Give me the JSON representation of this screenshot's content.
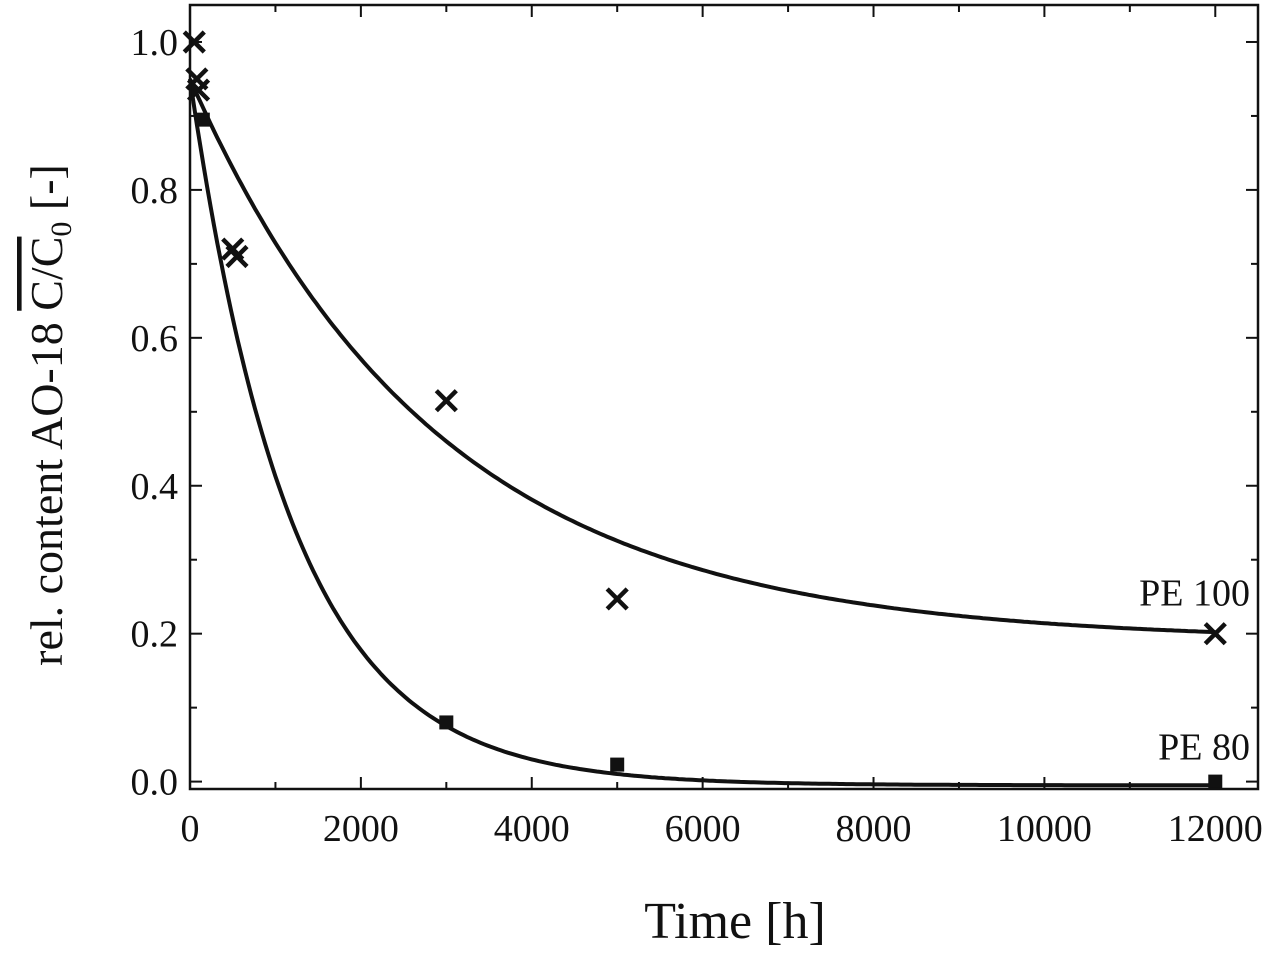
{
  "chart_data": {
    "type": "scatter",
    "xlabel": "Time [h]",
    "ylabel": {
      "prefix": "rel. content AO-18 ",
      "fraction": "C/C",
      "subscript": "0",
      "suffix": " [-]"
    },
    "xlim": [
      0,
      12500
    ],
    "ylim": [
      -0.01,
      1.05
    ],
    "x_ticks": [
      0,
      2000,
      4000,
      6000,
      8000,
      10000,
      12000
    ],
    "y_ticks": [
      0.0,
      0.2,
      0.4,
      0.6,
      0.8,
      1.0
    ],
    "x_tick_labels": [
      "0",
      "2000",
      "4000",
      "6000",
      "8000",
      "10000",
      "12000"
    ],
    "y_tick_labels": [
      "0.0",
      "0.2",
      "0.4",
      "0.6",
      "0.8",
      "1.0"
    ],
    "grid": false,
    "series": [
      {
        "name": "PE 100",
        "marker": "x",
        "points": [
          {
            "x": 50,
            "y": 1.0
          },
          {
            "x": 80,
            "y": 0.95
          },
          {
            "x": 100,
            "y": 0.935
          },
          {
            "x": 500,
            "y": 0.72
          },
          {
            "x": 550,
            "y": 0.71
          },
          {
            "x": 3000,
            "y": 0.515
          },
          {
            "x": 5000,
            "y": 0.247
          },
          {
            "x": 12000,
            "y": 0.2
          }
        ],
        "fit": {
          "model": "exponential",
          "y_inf": 0.19,
          "amplitude": 0.76,
          "tau_h": 2900
        }
      },
      {
        "name": "PE 80",
        "marker": "square",
        "points": [
          {
            "x": 150,
            "y": 0.895
          },
          {
            "x": 3000,
            "y": 0.08
          },
          {
            "x": 5000,
            "y": 0.023
          },
          {
            "x": 12000,
            "y": 0.0
          }
        ],
        "fit": {
          "model": "exponential",
          "y_inf": -0.005,
          "amplitude": 0.955,
          "tau_h": 1210
        }
      }
    ]
  }
}
